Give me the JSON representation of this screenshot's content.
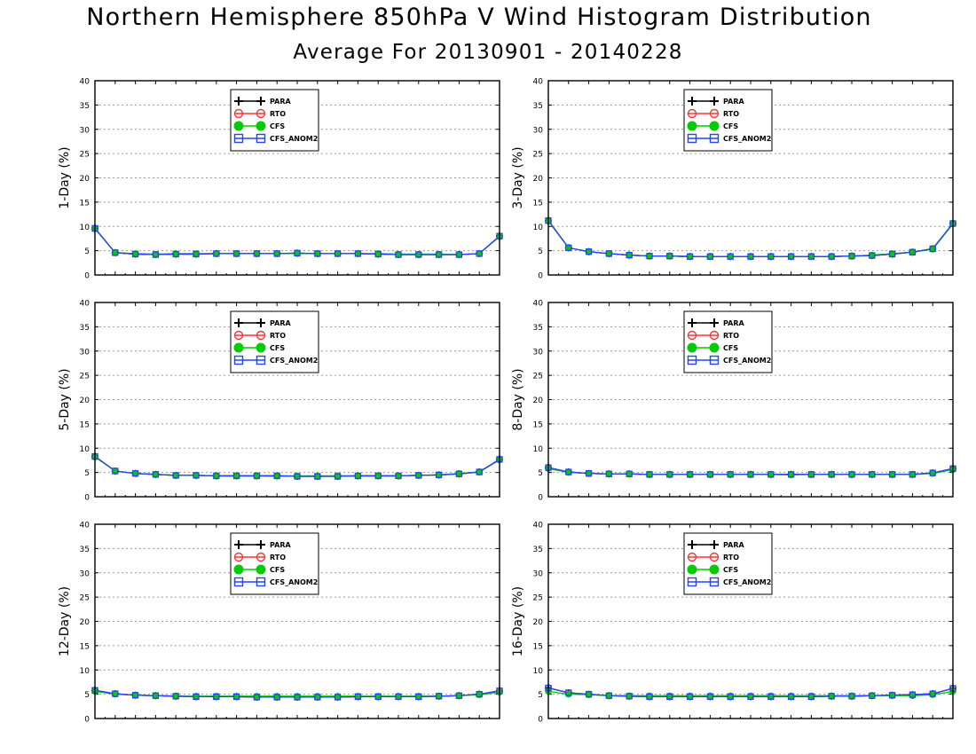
{
  "title": "Northern Hemisphere 850hPa V Wind Histogram Distribution",
  "subtitle": "Average For 20130901 - 20140228",
  "colors": {
    "PARA": "#000000",
    "RTO": "#ff3333",
    "CFS": "#00cc00",
    "CFS_ANOM2": "#2244ff",
    "grid": "#9a9a9a"
  },
  "chart_data": [
    {
      "type": "line",
      "ylabel": "1-Day (%)",
      "ylim": [
        0,
        40
      ],
      "yticks": [
        0,
        5,
        10,
        15,
        20,
        25,
        30,
        35,
        40
      ],
      "grid": true,
      "legend_position": "top-center",
      "x": [
        1,
        2,
        3,
        4,
        5,
        6,
        7,
        8,
        9,
        10,
        11,
        12,
        13,
        14,
        15,
        16,
        17,
        18,
        19,
        20,
        21
      ],
      "series": [
        {
          "name": "PARA",
          "values": [
            9.6,
            4.6,
            4.3,
            4.2,
            4.3,
            4.3,
            4.4,
            4.4,
            4.4,
            4.4,
            4.5,
            4.4,
            4.4,
            4.4,
            4.3,
            4.2,
            4.2,
            4.2,
            4.2,
            4.4,
            8.0
          ]
        },
        {
          "name": "RTO",
          "values": [
            9.6,
            4.6,
            4.3,
            4.2,
            4.3,
            4.3,
            4.4,
            4.4,
            4.4,
            4.4,
            4.5,
            4.4,
            4.4,
            4.4,
            4.3,
            4.2,
            4.2,
            4.2,
            4.2,
            4.4,
            8.0
          ]
        },
        {
          "name": "CFS",
          "values": [
            9.5,
            4.6,
            4.4,
            4.3,
            4.4,
            4.4,
            4.4,
            4.4,
            4.4,
            4.4,
            4.4,
            4.4,
            4.4,
            4.4,
            4.4,
            4.3,
            4.3,
            4.3,
            4.2,
            4.4,
            7.9
          ]
        },
        {
          "name": "CFS_ANOM2",
          "values": [
            9.6,
            4.6,
            4.3,
            4.2,
            4.3,
            4.3,
            4.4,
            4.4,
            4.4,
            4.4,
            4.5,
            4.4,
            4.4,
            4.4,
            4.3,
            4.2,
            4.2,
            4.2,
            4.2,
            4.4,
            8.0
          ]
        }
      ]
    },
    {
      "type": "line",
      "ylabel": "3-Day (%)",
      "ylim": [
        0,
        40
      ],
      "yticks": [
        0,
        5,
        10,
        15,
        20,
        25,
        30,
        35,
        40
      ],
      "grid": true,
      "legend_position": "top-center",
      "x": [
        1,
        2,
        3,
        4,
        5,
        6,
        7,
        8,
        9,
        10,
        11,
        12,
        13,
        14,
        15,
        16,
        17,
        18,
        19,
        20,
        21
      ],
      "series": [
        {
          "name": "PARA",
          "values": [
            11.2,
            5.6,
            4.8,
            4.4,
            4.1,
            3.9,
            3.9,
            3.8,
            3.8,
            3.8,
            3.8,
            3.8,
            3.8,
            3.8,
            3.8,
            3.9,
            4.0,
            4.3,
            4.7,
            5.4,
            10.6
          ]
        },
        {
          "name": "RTO",
          "values": [
            11.2,
            5.6,
            4.8,
            4.4,
            4.1,
            3.9,
            3.9,
            3.8,
            3.8,
            3.8,
            3.8,
            3.8,
            3.8,
            3.8,
            3.8,
            3.9,
            4.0,
            4.3,
            4.7,
            5.4,
            10.6
          ]
        },
        {
          "name": "CFS",
          "values": [
            11.1,
            5.6,
            4.8,
            4.4,
            4.1,
            3.9,
            3.9,
            3.8,
            3.8,
            3.8,
            3.8,
            3.8,
            3.8,
            3.8,
            3.8,
            3.9,
            4.1,
            4.4,
            4.7,
            5.3,
            10.5
          ]
        },
        {
          "name": "CFS_ANOM2",
          "values": [
            11.2,
            5.6,
            4.8,
            4.4,
            4.1,
            3.9,
            3.9,
            3.8,
            3.8,
            3.8,
            3.8,
            3.8,
            3.8,
            3.8,
            3.8,
            3.9,
            4.0,
            4.3,
            4.7,
            5.4,
            10.6
          ]
        }
      ]
    },
    {
      "type": "line",
      "ylabel": "5-Day (%)",
      "ylim": [
        0,
        40
      ],
      "yticks": [
        0,
        5,
        10,
        15,
        20,
        25,
        30,
        35,
        40
      ],
      "grid": true,
      "legend_position": "top-center",
      "x": [
        1,
        2,
        3,
        4,
        5,
        6,
        7,
        8,
        9,
        10,
        11,
        12,
        13,
        14,
        15,
        16,
        17,
        18,
        19,
        20,
        21
      ],
      "series": [
        {
          "name": "PARA",
          "values": [
            8.3,
            5.3,
            4.8,
            4.6,
            4.4,
            4.4,
            4.3,
            4.3,
            4.3,
            4.3,
            4.2,
            4.2,
            4.2,
            4.3,
            4.3,
            4.3,
            4.4,
            4.5,
            4.7,
            5.1,
            7.7
          ]
        },
        {
          "name": "RTO",
          "values": [
            8.3,
            5.3,
            4.8,
            4.6,
            4.4,
            4.4,
            4.3,
            4.3,
            4.3,
            4.3,
            4.2,
            4.2,
            4.3,
            4.3,
            4.3,
            4.3,
            4.4,
            4.5,
            4.7,
            5.1,
            7.7
          ]
        },
        {
          "name": "CFS",
          "values": [
            8.2,
            5.3,
            4.8,
            4.6,
            4.4,
            4.4,
            4.3,
            4.3,
            4.3,
            4.3,
            4.3,
            4.3,
            4.3,
            4.3,
            4.3,
            4.3,
            4.4,
            4.5,
            4.8,
            5.1,
            7.6
          ]
        },
        {
          "name": "CFS_ANOM2",
          "values": [
            8.3,
            5.3,
            4.8,
            4.6,
            4.4,
            4.4,
            4.3,
            4.3,
            4.3,
            4.3,
            4.2,
            4.2,
            4.2,
            4.3,
            4.3,
            4.3,
            4.4,
            4.5,
            4.7,
            5.1,
            7.7
          ]
        }
      ]
    },
    {
      "type": "line",
      "ylabel": "8-Day (%)",
      "ylim": [
        0,
        40
      ],
      "yticks": [
        0,
        5,
        10,
        15,
        20,
        25,
        30,
        35,
        40
      ],
      "grid": true,
      "legend_position": "top-center",
      "x": [
        1,
        2,
        3,
        4,
        5,
        6,
        7,
        8,
        9,
        10,
        11,
        12,
        13,
        14,
        15,
        16,
        17,
        18,
        19,
        20,
        21
      ],
      "series": [
        {
          "name": "PARA",
          "values": [
            6.0,
            5.1,
            4.8,
            4.7,
            4.7,
            4.6,
            4.6,
            4.6,
            4.6,
            4.6,
            4.6,
            4.6,
            4.6,
            4.6,
            4.6,
            4.6,
            4.6,
            4.6,
            4.6,
            4.9,
            5.8
          ]
        },
        {
          "name": "RTO",
          "values": [
            6.0,
            5.1,
            4.8,
            4.7,
            4.7,
            4.6,
            4.6,
            4.6,
            4.6,
            4.6,
            4.6,
            4.6,
            4.6,
            4.6,
            4.6,
            4.6,
            4.6,
            4.6,
            4.6,
            4.9,
            5.8
          ]
        },
        {
          "name": "CFS",
          "values": [
            5.8,
            5.0,
            4.8,
            4.7,
            4.7,
            4.6,
            4.6,
            4.6,
            4.6,
            4.6,
            4.6,
            4.6,
            4.5,
            4.6,
            4.6,
            4.6,
            4.6,
            4.6,
            4.6,
            4.8,
            5.6
          ]
        },
        {
          "name": "CFS_ANOM2",
          "values": [
            6.0,
            5.1,
            4.8,
            4.7,
            4.7,
            4.6,
            4.6,
            4.6,
            4.6,
            4.6,
            4.6,
            4.6,
            4.6,
            4.6,
            4.6,
            4.6,
            4.6,
            4.6,
            4.6,
            4.9,
            5.8
          ]
        }
      ]
    },
    {
      "type": "line",
      "ylabel": "12-Day (%)",
      "ylim": [
        0,
        40
      ],
      "yticks": [
        0,
        5,
        10,
        15,
        20,
        25,
        30,
        35,
        40
      ],
      "grid": true,
      "legend_position": "top-center",
      "x": [
        1,
        2,
        3,
        4,
        5,
        6,
        7,
        8,
        9,
        10,
        11,
        12,
        13,
        14,
        15,
        16,
        17,
        18,
        19,
        20,
        21
      ],
      "series": [
        {
          "name": "PARA",
          "values": [
            5.8,
            5.1,
            4.8,
            4.7,
            4.6,
            4.5,
            4.5,
            4.5,
            4.4,
            4.4,
            4.4,
            4.4,
            4.4,
            4.5,
            4.5,
            4.5,
            4.5,
            4.6,
            4.7,
            5.0,
            5.7
          ]
        },
        {
          "name": "RTO",
          "values": [
            5.8,
            5.1,
            4.8,
            4.7,
            4.6,
            4.5,
            4.5,
            4.5,
            4.4,
            4.4,
            4.4,
            4.4,
            4.4,
            4.5,
            4.5,
            4.5,
            4.5,
            4.6,
            4.7,
            5.0,
            5.7
          ]
        },
        {
          "name": "CFS",
          "values": [
            5.6,
            5.0,
            4.8,
            4.7,
            4.6,
            4.6,
            4.6,
            4.6,
            4.6,
            4.6,
            4.6,
            4.6,
            4.6,
            4.6,
            4.6,
            4.6,
            4.6,
            4.6,
            4.7,
            4.9,
            5.4
          ]
        },
        {
          "name": "CFS_ANOM2",
          "values": [
            5.8,
            5.1,
            4.8,
            4.7,
            4.6,
            4.5,
            4.5,
            4.5,
            4.4,
            4.4,
            4.4,
            4.4,
            4.4,
            4.5,
            4.5,
            4.5,
            4.5,
            4.6,
            4.7,
            5.0,
            5.7
          ]
        }
      ]
    },
    {
      "type": "line",
      "ylabel": "16-Day (%)",
      "ylim": [
        0,
        40
      ],
      "yticks": [
        0,
        5,
        10,
        15,
        20,
        25,
        30,
        35,
        40
      ],
      "grid": true,
      "legend_position": "top-center",
      "x": [
        1,
        2,
        3,
        4,
        5,
        6,
        7,
        8,
        9,
        10,
        11,
        12,
        13,
        14,
        15,
        16,
        17,
        18,
        19,
        20,
        21
      ],
      "series": [
        {
          "name": "PARA",
          "values": [
            6.3,
            5.3,
            5.0,
            4.7,
            4.6,
            4.5,
            4.5,
            4.5,
            4.5,
            4.5,
            4.5,
            4.5,
            4.5,
            4.5,
            4.6,
            4.6,
            4.7,
            4.8,
            4.9,
            5.1,
            6.2
          ]
        },
        {
          "name": "RTO",
          "values": [
            6.3,
            5.3,
            5.0,
            4.7,
            4.6,
            4.5,
            4.5,
            4.5,
            4.5,
            4.5,
            4.5,
            4.5,
            4.5,
            4.5,
            4.6,
            4.6,
            4.7,
            4.8,
            4.9,
            5.1,
            6.2
          ]
        },
        {
          "name": "CFS",
          "values": [
            5.6,
            5.0,
            4.9,
            4.7,
            4.7,
            4.7,
            4.7,
            4.7,
            4.7,
            4.7,
            4.7,
            4.7,
            4.7,
            4.7,
            4.7,
            4.7,
            4.7,
            4.7,
            4.7,
            4.9,
            5.6
          ]
        },
        {
          "name": "CFS_ANOM2",
          "values": [
            6.3,
            5.3,
            5.0,
            4.7,
            4.6,
            4.5,
            4.5,
            4.5,
            4.5,
            4.5,
            4.5,
            4.5,
            4.5,
            4.5,
            4.6,
            4.6,
            4.7,
            4.8,
            4.9,
            5.1,
            6.2
          ]
        }
      ]
    }
  ]
}
